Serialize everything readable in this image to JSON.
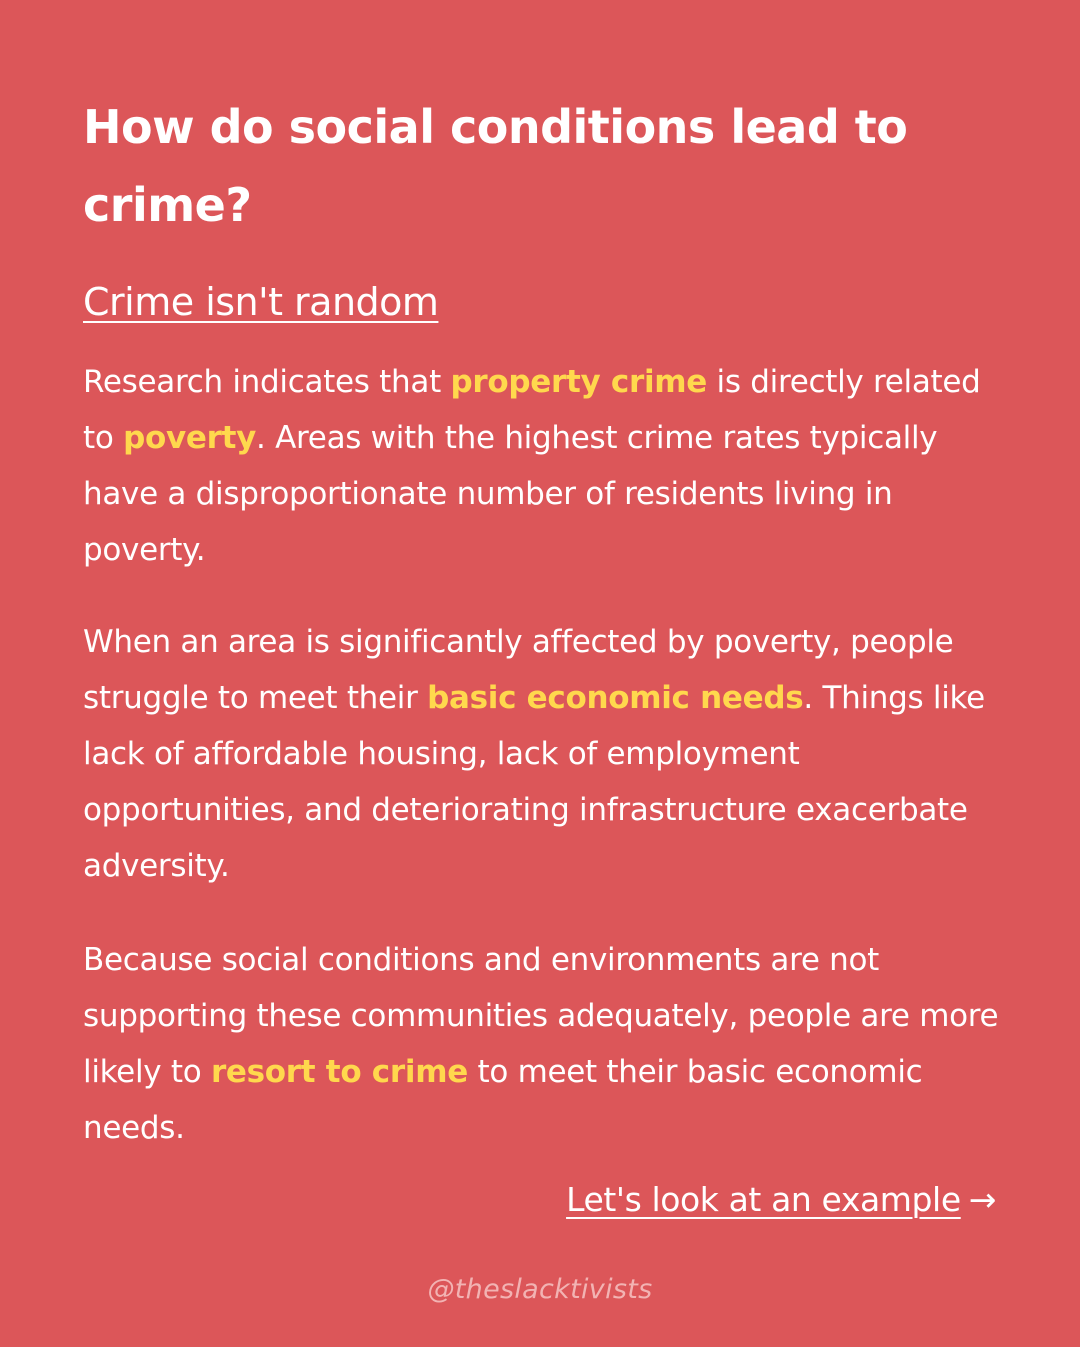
{
  "title": "How do social conditions lead to crime?",
  "subtitle": "Crime isn't random",
  "paragraphs": [
    {
      "segments": [
        {
          "text": "Research indicates that ",
          "highlight": false
        },
        {
          "text": "property crime",
          "highlight": true
        },
        {
          "text": " is directly related to ",
          "highlight": false
        },
        {
          "text": "poverty",
          "highlight": true
        },
        {
          "text": ". Areas with the highest crime rates typically have a disproportionate number of residents living in poverty.",
          "highlight": false
        }
      ]
    },
    {
      "segments": [
        {
          "text": "When an area is significantly affected by poverty, people struggle to meet their ",
          "highlight": false
        },
        {
          "text": "basic economic needs",
          "highlight": true
        },
        {
          "text": ". Things like lack of affordable housing, lack of employment opportunities, and deteriorating infrastructure exacerbate adversity.",
          "highlight": false
        }
      ]
    },
    {
      "segments": [
        {
          "text": "Because social conditions and environments are not supporting these communities adequately, people are more likely to ",
          "highlight": false
        },
        {
          "text": "resort to crime",
          "highlight": true
        },
        {
          "text": " to meet their basic economic needs.",
          "highlight": false
        }
      ]
    }
  ],
  "cta": {
    "label": "Let's look at an example",
    "arrow": "→"
  },
  "handle": "@theslacktivists",
  "colors": {
    "background": "#dc5659",
    "text": "#ffffff",
    "highlight": "#ffd84d",
    "handle": "#f2b3b3"
  }
}
